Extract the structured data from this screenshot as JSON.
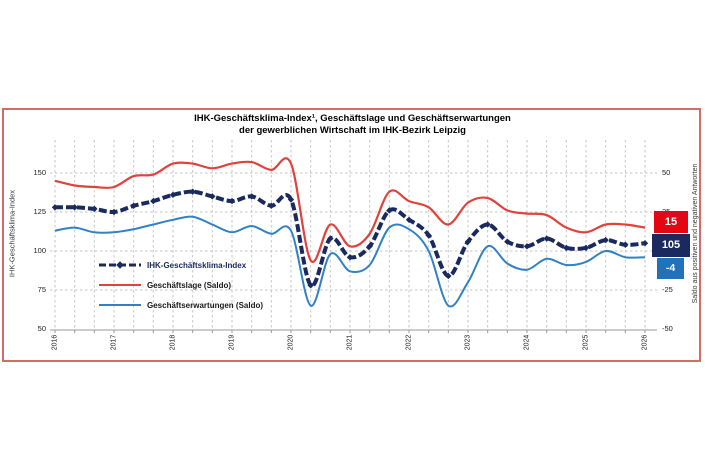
{
  "panel": {
    "border_color": "#d46a6a",
    "background": "#ffffff"
  },
  "title": {
    "line1": "IHK-Geschäftsklima-Index¹, Geschäftslage und Geschäftserwartungen",
    "line2": "der gewerblichen Wirtschaft im IHK-Bezirk Leipzig"
  },
  "axes": {
    "left": {
      "label": "IHK-Geschäftsklima-Index",
      "ticks": [
        150,
        125,
        100,
        75,
        50
      ],
      "range": [
        50,
        150
      ]
    },
    "right": {
      "label": "Saldo aus positiven und negativen Antworten",
      "ticks": [
        50,
        25,
        0,
        -25,
        -50
      ],
      "range": [
        -50,
        50
      ]
    },
    "x": {
      "ticks": [
        "2016",
        "2017",
        "2018",
        "2019",
        "2020",
        "2021",
        "2022",
        "2023",
        "2024",
        "2025",
        "2026"
      ]
    }
  },
  "legend": [
    {
      "label": "IHK-Geschäftsklima-Index",
      "color": "#1b2a5e",
      "label_color": "#1b2a5e",
      "style": "dash-diamond"
    },
    {
      "label": "Geschäftslage (Saldo)",
      "color": "#e0423c",
      "label_color": "#1a1a1a",
      "style": "line"
    },
    {
      "label": "Geschäftserwartungen (Saldo)",
      "color": "#3181c4",
      "label_color": "#1a1a1a",
      "style": "line"
    }
  ],
  "end_labels": [
    {
      "value": "15",
      "color": "#e30613",
      "series": "Geschäftslage (Saldo)"
    },
    {
      "value": "105",
      "color": "#1b2a5e",
      "series": "IHK-Geschäftsklima-Index"
    },
    {
      "value": "-4",
      "color": "#2272b9",
      "series": "Geschäftserwartungen (Saldo)"
    }
  ],
  "chart_data": {
    "type": "line",
    "title": "IHK-Geschäftsklima-Index¹, Geschäftslage und Geschäftserwartungen der gewerblichen Wirtschaft im IHK-Bezirk Leipzig",
    "x_label": "",
    "x_years": [
      2016,
      2016.33,
      2016.67,
      2017,
      2017.33,
      2017.67,
      2018,
      2018.33,
      2018.67,
      2019,
      2019.33,
      2019.67,
      2020,
      2020.33,
      2020.67,
      2021,
      2021.33,
      2021.67,
      2022,
      2022.33,
      2022.67,
      2023,
      2023.33,
      2023.67,
      2024,
      2024.33,
      2024.67,
      2025,
      2025.33,
      2025.67,
      2026
    ],
    "left_axis": {
      "label": "IHK-Geschäftsklima-Index",
      "range": [
        50,
        150
      ]
    },
    "right_axis": {
      "label": "Saldo aus positiven und negativen Antworten",
      "range": [
        -50,
        50
      ]
    },
    "grid": {
      "vertical": "per-survey (3 per year)",
      "horizontal": "every 25 units",
      "color": "#c6c6c6",
      "dashed": true
    },
    "legend_position": "inside-left",
    "series": [
      {
        "name": "IHK-Geschäftsklima-Index",
        "axis": "left",
        "color": "#1b2a5e",
        "style": "thick-dash-diamond",
        "values": [
          128,
          128,
          127,
          125,
          129,
          132,
          136,
          138,
          135,
          132,
          135,
          129,
          133,
          78,
          108,
          96,
          103,
          126,
          120,
          110,
          84,
          106,
          117,
          106,
          103,
          108,
          102,
          102,
          107,
          104,
          105
        ]
      },
      {
        "name": "Geschäftslage (Saldo)",
        "axis": "right",
        "color": "#e0423c",
        "style": "solid",
        "values": [
          45,
          42,
          41,
          41,
          48,
          49,
          56,
          56,
          53,
          56,
          57,
          52,
          56,
          -6,
          17,
          3,
          11,
          38,
          32,
          28,
          17,
          31,
          34,
          26,
          24,
          23,
          15,
          12,
          17,
          17,
          15
        ]
      },
      {
        "name": "Geschäftserwartungen (Saldo)",
        "axis": "right",
        "color": "#3181c4",
        "style": "solid",
        "values": [
          13,
          15,
          12,
          12,
          14,
          17,
          20,
          22,
          17,
          12,
          16,
          11,
          13,
          -35,
          -2,
          -13,
          -9,
          15,
          14,
          0,
          -35,
          -20,
          3,
          -8,
          -12,
          -5,
          -9,
          -7,
          0,
          -4,
          -4
        ]
      }
    ]
  }
}
